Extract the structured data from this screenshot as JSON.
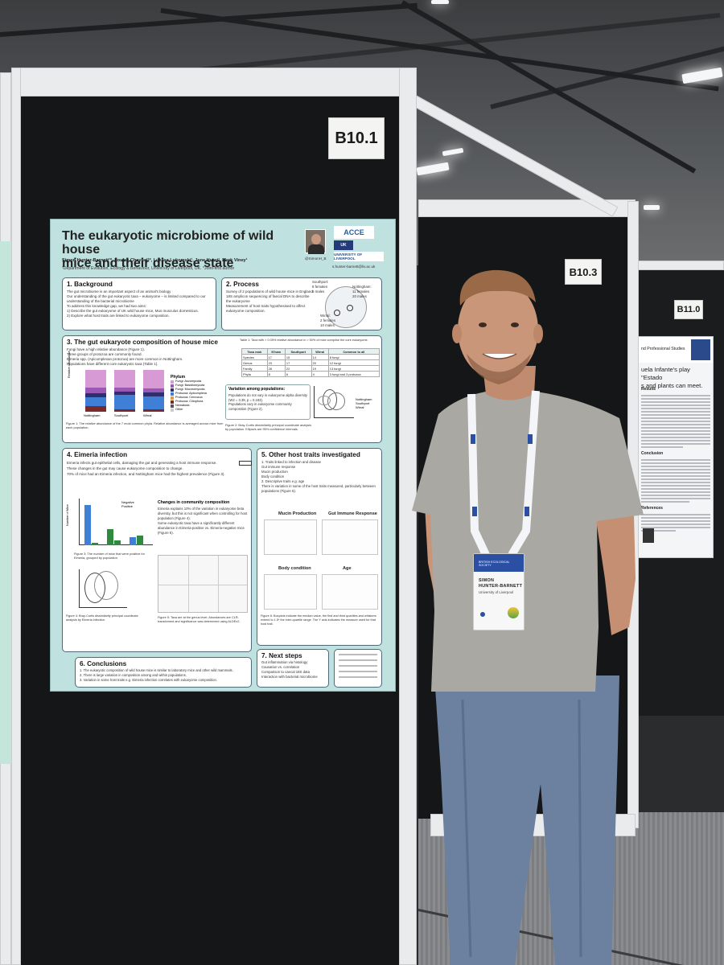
{
  "boards": {
    "main_label": "B10.1",
    "second_label": "B10.3",
    "third_label": "B11.0"
  },
  "poster": {
    "title_line1": "The eukaryotic microbiome of wild house",
    "title_line2": "mice and their disease state",
    "authors": "Simon Hunter-Barnett¹*, Louise Cheynel¹*, Lukasz Lukomski¹, Jane Hurst¹, Mark Viney¹",
    "affiliation": "¹Department of Evolution, Ecology & Behaviour, University of Liverpool, UK. *Joint-first author",
    "handle": "@SimonH_B",
    "email": "s.hunter-barnett@liv.ac.uk",
    "logo_acce": "ACCE",
    "logo_liverpool": "UNIVERSITY OF LIVERPOOL",
    "sections": {
      "background": {
        "heading": "1. Background",
        "text": "The gut microbiome is an important aspect of an animal's biology\nOur understanding of the gut eukaryotic taxa – eukaryome – is limited compared to our understanding of the bacterial microbiome\nTo address this knowledge gap, we had two aims:\n1) Describe the gut eukaryome of UK wild house mice, Mus musculus domesticus.\n2) Explore what host traits are linked to eukaryome composition."
      },
      "process": {
        "heading": "2. Process",
        "text": "Survey of 2 populations of wild house mice in England\n18S amplicon sequencing of faecal DNA to describe the eukaryome\nMeasurement of host traits hypothesised to affect eukaryome composition.",
        "southport": "Southport:\n8 females\n6 males",
        "nottingham": "Nottingham:\n11 females\n20 males",
        "wirral": "Wirral:\n2 females\n10 males"
      },
      "composition": {
        "heading": "3. The gut eukaryote composition of house mice",
        "text": "Fungi have a high relative abundance (Figure 1).\nThree groups of protozoa are commonly found.\nEimeria spp. (Apicomplexan protozoa) are more common in Nottingham.\nPopulations have different core eukaryotic taxa (Table 1).",
        "table_caption": "Table 1: Taxa with > 0.05% relative abundance in > 50% of mice comprise the core eukaryome.",
        "table_header": [
          "Taxa rank",
          "N'ham",
          "Southport",
          "Wirral",
          "Common to all"
        ],
        "table_rows": [
          [
            "Species",
            "17",
            "15",
            "14",
            "8 fungi"
          ],
          [
            "Genus",
            "23",
            "17",
            "20",
            "12 fungi"
          ],
          [
            "Family",
            "28",
            "22",
            "19",
            "13 fungi"
          ],
          [
            "Phyla",
            "8",
            "6",
            "4",
            "3 fungi and 3 protozoa"
          ]
        ],
        "variation_title": "Variation among populations:",
        "variation_text": "Populations do not vary in eukaryome alpha diversity (W2 = 3.39, p = 0.183).\nPopulations vary in eukaryome community composition (Figure 2).",
        "fig1_caption": "Figure 1: The relative abundance of the 7 most common phyla. Relative abundance is averaged across mice from each population.",
        "fig2_caption": "Figure 2: Bray-Curtis dissimilarity principal coordinate analysis by population. Ellipses are 95% confidence intervals.",
        "phylum_title": "Phylum",
        "phylum_legend": [
          "Fungi: Ascomycota",
          "Fungi: Basidiomycota",
          "Fungi: Mucoromycota",
          "Protozoa: Apicomplexa",
          "Protozoa: Cercozoa",
          "Protozoa: Ciliophora",
          "Nematoda",
          "Other"
        ],
        "fig1_categories": [
          "Nottingham",
          "Southport",
          "Wirral"
        ],
        "fig1_ylabel": "Relative Abundance",
        "pop_legend": [
          "Nottingham",
          "Southport",
          "Wirral"
        ]
      },
      "eimeria": {
        "heading": "4. Eimeria infection",
        "text": "Eimeria infects gut epithelial cells, damaging the gut and generating a host immune response.\nThese changes in the gut may cause eukaryome composition to change.\n70% of mice had an Eimeria infection, and Nottingham mice had the highest prevalence (Figure 3).",
        "community_title": "Changes in community composition",
        "community_text": "Eimeria explains 10% of the variation in eukaryome beta diversity, but this is not significant when controlling for host population (Figure 4).\nSome eukaryotic taxa have a significantly different abundance in Eimeria-positive vs. Eimeria-negative mice (Figure 5).",
        "fig3_caption": "Figure 3: The number of mice that were positive for Eimeria, grouped by population.",
        "fig4_caption": "Figure 4: Bray-Curtis dissimilarity principal coordinate analysis by Eimeria infection.",
        "fig5_caption": "Figure 5: Taxa are at the genus level. Abundances are CLR-transformed and significance was determined using ALDEx2.",
        "legend_neg": "Negative",
        "legend_pos": "Positive",
        "ylabel": "Number of Mice"
      },
      "other_traits": {
        "heading": "5. Other host traits investigated",
        "text": "1. Traits linked to infection and disease\n  Gut immune response\n  Mucin production\n  Body condition\n2. Descriptive traits e.g. age\nThere is variation in some of the host traits measured, particularly between populations (Figure 6).",
        "plot_titles": [
          "Mucin Production",
          "Gut Immune Response",
          "Body condition",
          "Age"
        ],
        "fig6_caption": "Figure 6: Boxplots indicate the median value, the first and third quartiles and whiskers extend to 1.5* the inter-quartile range. The Y axis indicates the measure used for that host trait."
      },
      "conclusions": {
        "heading": "6. Conclusions",
        "text": "1. The eukaryotic composition of wild house mice is similar to laboratory mice and other wild mammals.\n2. There is large variation in composition among and within populations.\n3. Variation in some host traits e.g. Eimeria infection correlates with eukaryome composition."
      },
      "next_steps": {
        "heading": "7. Next steps",
        "text": "Gut inflammation via histology\nCausation vs. correlation\nComparison to caecal 18S data\nInteraction with bacterial microbiome"
      }
    }
  },
  "right_poster": {
    "header": "nd Professional Studies",
    "headline": "uela Infante's play \"Estado\ns and plants can meet.",
    "sections": [
      "Results",
      "Conclusion",
      "References"
    ]
  },
  "badge": {
    "org": "BRITISH ECOLOGICAL SOCIETY",
    "name_line1": "SIMON",
    "name_line2": "HUNTER-BARNETT",
    "institution": "University of Liverpool"
  },
  "colors": {
    "poster_bg": "#bfe1e0",
    "fig_pink": "#d79ad5",
    "fig_blue": "#3f7fd6",
    "fig_green": "#2e8b3e",
    "panel_black": "#151617",
    "shirt": "#aaa9a3",
    "jeans": "#6d84a3"
  }
}
